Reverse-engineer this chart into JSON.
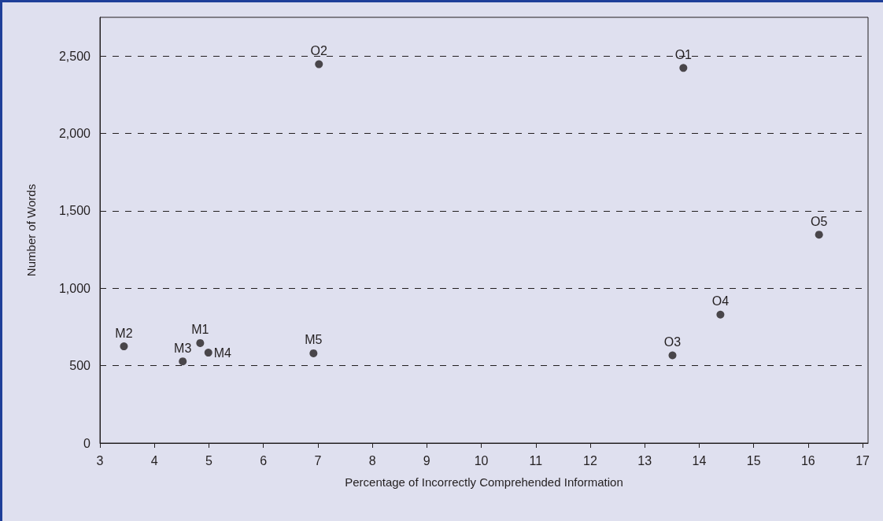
{
  "chart_data": {
    "type": "scatter",
    "xlabel": "Percentage of Incorrectly Comprehended Information",
    "ylabel": "Number of Words",
    "series": [
      {
        "color": "#231f20",
        "x": [
          3.44,
          4.84,
          4.52,
          4.99,
          6.92,
          13.71,
          7.02,
          13.51,
          14.39,
          16.2
        ],
        "values": [
          625,
          646,
          528,
          584,
          580,
          2423,
          2447,
          567,
          830,
          1346
        ]
      }
    ],
    "annotations": [
      {
        "text": "M2",
        "x": 3.44,
        "y": 625
      },
      {
        "text": "M1",
        "x": 4.84,
        "y": 646
      },
      {
        "text": "M3",
        "x": 4.52,
        "y": 528
      },
      {
        "text": "M4",
        "x": 4.99,
        "y": 584
      },
      {
        "text": "M5",
        "x": 6.92,
        "y": 580
      },
      {
        "text": "O1",
        "x": 13.71,
        "y": 2423
      },
      {
        "text": "O2",
        "x": 7.02,
        "y": 2447
      },
      {
        "text": "O3",
        "x": 13.51,
        "y": 567
      },
      {
        "text": "O4",
        "x": 14.39,
        "y": 830
      },
      {
        "text": "O5",
        "x": 16.2,
        "y": 1346
      }
    ],
    "xlim": [
      3,
      17.1
    ],
    "xticks": [
      3,
      4,
      5,
      6,
      7,
      8,
      9,
      10,
      11,
      12,
      13,
      14,
      15,
      16,
      17
    ],
    "ylim": [
      0,
      2750
    ],
    "yticks": [
      {
        "value": 0,
        "label": "0"
      },
      {
        "value": 500,
        "label": "500"
      },
      {
        "value": 1000,
        "label": "1,000"
      },
      {
        "value": 1500,
        "label": "1,500"
      },
      {
        "value": 2000,
        "label": "2,000"
      },
      {
        "value": 2500,
        "label": "2,500"
      }
    ],
    "grid": "y",
    "marker": "circle"
  }
}
